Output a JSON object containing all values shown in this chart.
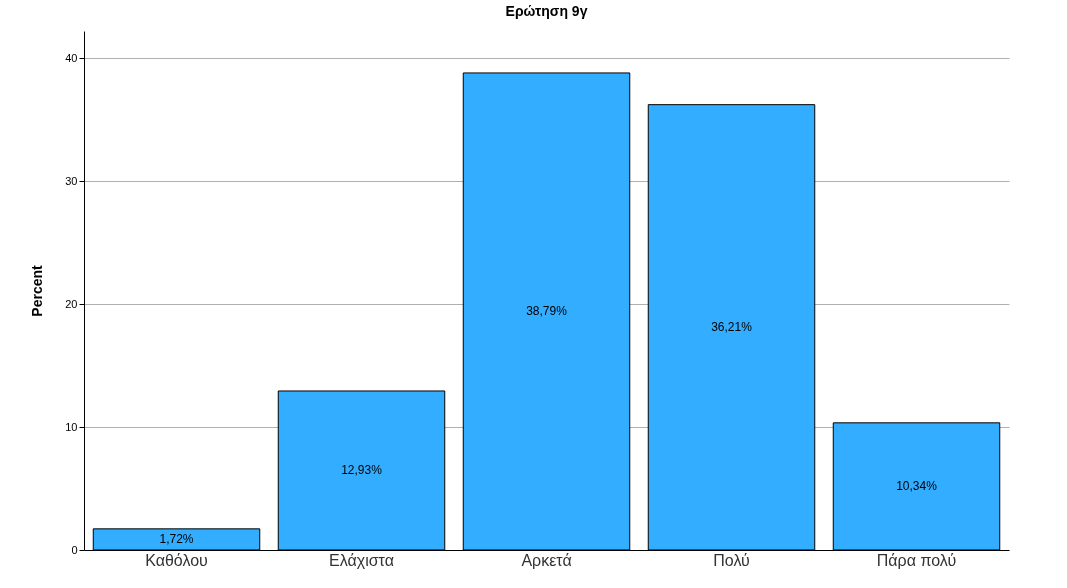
{
  "chart_data": {
    "type": "bar",
    "title": "Ερώτηση 9γ",
    "ylabel": "Percent",
    "categories": [
      "Καθόλου",
      "Ελάχιστα",
      "Αρκετά",
      "Πολύ",
      "Πάρα πολύ"
    ],
    "values": [
      1.72,
      12.93,
      38.79,
      36.21,
      10.34
    ],
    "value_labels": [
      "1,72%",
      "12,93%",
      "38,79%",
      "36,21%",
      "10,34%"
    ],
    "color": "#33adff",
    "ylim": [
      0,
      42.2
    ],
    "yticks": [
      0,
      10,
      20,
      30,
      40
    ],
    "grid": "y"
  }
}
